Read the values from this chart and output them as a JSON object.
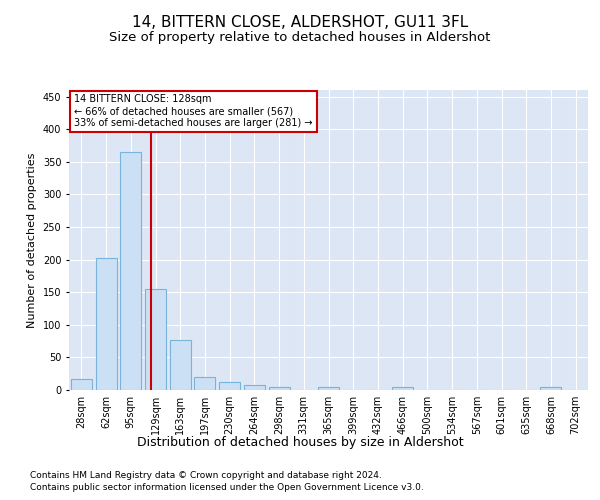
{
  "title1": "14, BITTERN CLOSE, ALDERSHOT, GU11 3FL",
  "title2": "Size of property relative to detached houses in Aldershot",
  "xlabel": "Distribution of detached houses by size in Aldershot",
  "ylabel": "Number of detached properties",
  "footnote1": "Contains HM Land Registry data © Crown copyright and database right 2024.",
  "footnote2": "Contains public sector information licensed under the Open Government Licence v3.0.",
  "categories": [
    "28sqm",
    "62sqm",
    "95sqm",
    "129sqm",
    "163sqm",
    "197sqm",
    "230sqm",
    "264sqm",
    "298sqm",
    "331sqm",
    "365sqm",
    "399sqm",
    "432sqm",
    "466sqm",
    "500sqm",
    "534sqm",
    "567sqm",
    "601sqm",
    "635sqm",
    "668sqm",
    "702sqm"
  ],
  "values": [
    17,
    202,
    365,
    155,
    77,
    20,
    13,
    7,
    5,
    0,
    4,
    0,
    0,
    4,
    0,
    0,
    0,
    0,
    0,
    4,
    0
  ],
  "bar_color": "#cce0f5",
  "bar_edge_color": "#7ab3d9",
  "bar_edge_width": 0.8,
  "vline_x_index": 2.82,
  "vline_color": "#cc0000",
  "annotation_line1": "14 BITTERN CLOSE: 128sqm",
  "annotation_line2": "← 66% of detached houses are smaller (567)",
  "annotation_line3": "33% of semi-detached houses are larger (281) →",
  "annotation_box_color": "#ffffff",
  "annotation_box_edge": "#cc0000",
  "ylim": [
    0,
    460
  ],
  "yticks": [
    0,
    50,
    100,
    150,
    200,
    250,
    300,
    350,
    400,
    450
  ],
  "bg_color": "#dce6f5",
  "fig_bg": "#ffffff",
  "title1_fontsize": 11,
  "title2_fontsize": 9.5,
  "xlabel_fontsize": 9,
  "ylabel_fontsize": 8,
  "tick_fontsize": 7,
  "footnote_fontsize": 6.5
}
